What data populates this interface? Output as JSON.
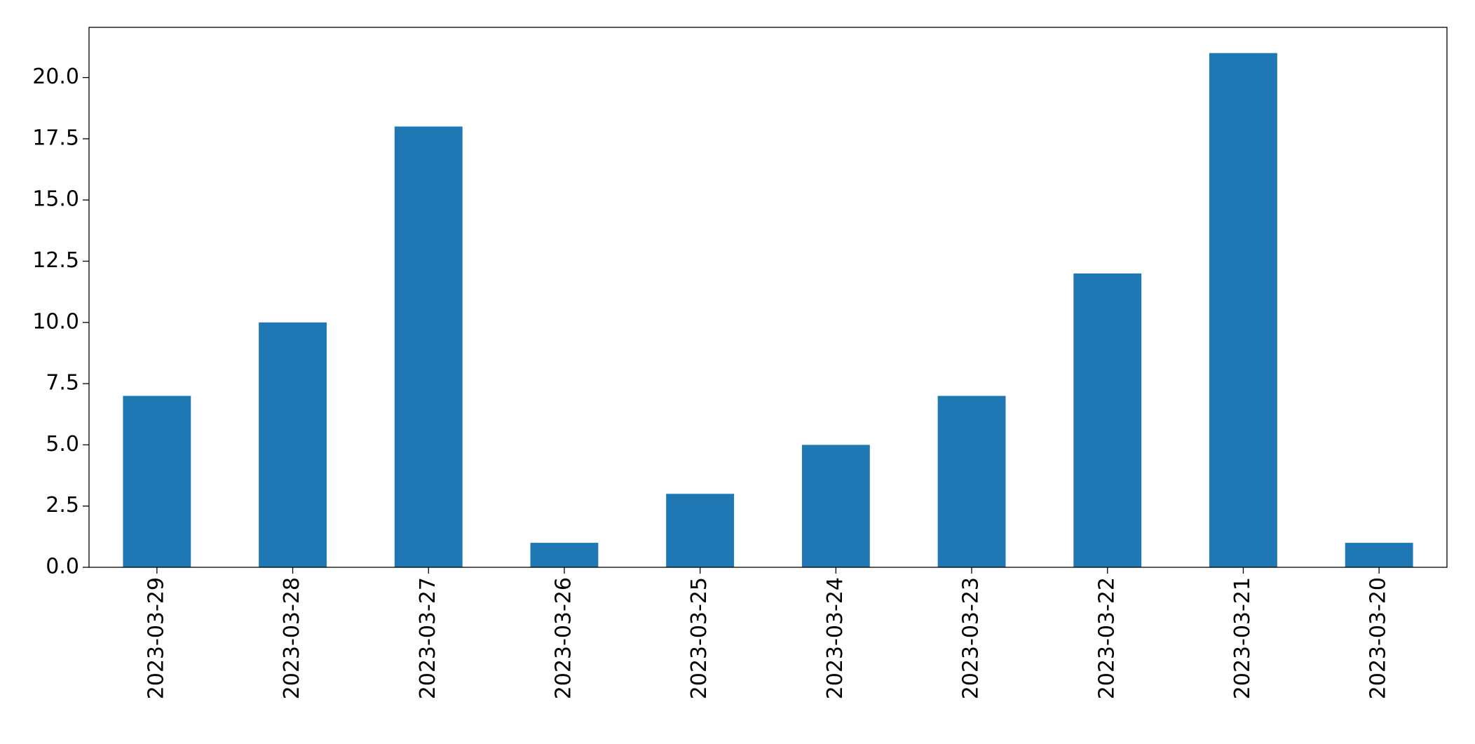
{
  "chart_data": {
    "type": "bar",
    "categories": [
      "2023-03-29",
      "2023-03-28",
      "2023-03-27",
      "2023-03-26",
      "2023-03-25",
      "2023-03-24",
      "2023-03-23",
      "2023-03-22",
      "2023-03-21",
      "2023-03-20"
    ],
    "values": [
      7,
      10,
      18,
      1,
      3,
      5,
      7,
      12,
      21,
      1
    ],
    "color": "#1f77b4",
    "ylim": [
      0,
      22.05
    ],
    "yticks": [
      {
        "value": 0,
        "label": "0.0"
      },
      {
        "value": 2.5,
        "label": "2.5"
      },
      {
        "value": 5,
        "label": "5.0"
      },
      {
        "value": 7.5,
        "label": "7.5"
      },
      {
        "value": 10,
        "label": "10.0"
      },
      {
        "value": 12.5,
        "label": "12.5"
      },
      {
        "value": 15,
        "label": "15.0"
      },
      {
        "value": 17.5,
        "label": "17.5"
      },
      {
        "value": 20,
        "label": "20.0"
      }
    ],
    "grid": false
  }
}
